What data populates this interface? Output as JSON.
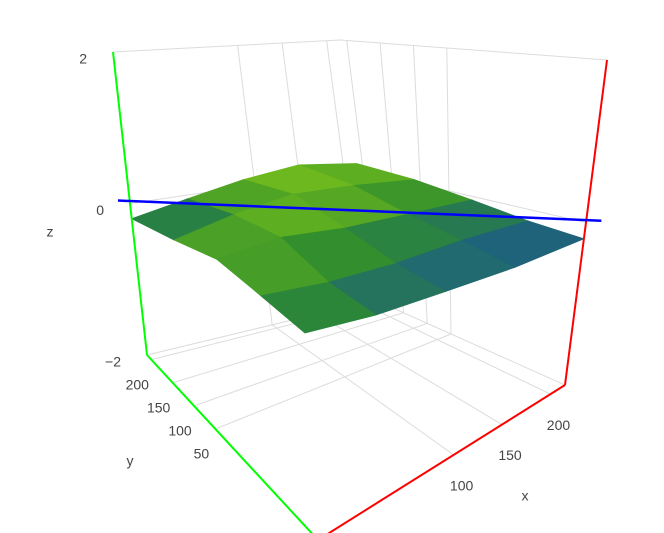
{
  "chart_data": {
    "type": "surface",
    "x": [
      -40,
      24,
      88,
      151,
      215
    ],
    "y": [
      -190,
      -90,
      10,
      110,
      210
    ],
    "z": [
      [
        0.0,
        -0.1,
        -0.15,
        -0.2,
        -0.2
      ],
      [
        0.05,
        -0.05,
        -0.1,
        -0.1,
        -0.15
      ],
      [
        0.1,
        0.15,
        0.05,
        0.0,
        -0.05
      ],
      [
        -0.05,
        0.1,
        0.2,
        0.15,
        0.05
      ],
      [
        -0.2,
        -0.05,
        0.1,
        0.2,
        0.1
      ]
    ],
    "xlim": [
      -40,
      215
    ],
    "ylim": [
      -190,
      210
    ],
    "zlim": [
      -2,
      2
    ],
    "xticks": [
      100,
      150,
      200
    ],
    "yticks": [
      50,
      100,
      150,
      200
    ],
    "zticks": [
      {
        "value": -2,
        "label": "−2"
      },
      0,
      2
    ],
    "xaxis_title": "x",
    "yaxis_title": "y",
    "zaxis_title": "z",
    "axis_colors": {
      "x": "#ff0000",
      "y": "#00ff00",
      "z": "#00ff00"
    },
    "zeroline_color": "#0000ff",
    "colorscale": [
      "#1b5a8c",
      "#2e8c2e",
      "#7bc21a"
    ],
    "grid": true
  }
}
